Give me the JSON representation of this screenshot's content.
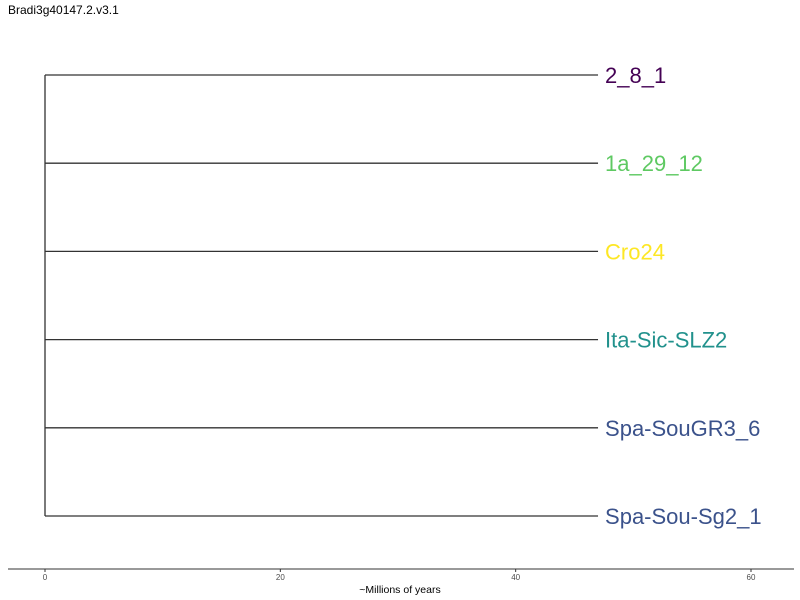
{
  "title": "Bradi3g40147.2.v3.1",
  "chart_data": {
    "type": "dendrogram",
    "x_axis": {
      "label": "~Millions of years",
      "ticks": [
        0,
        20,
        40,
        60
      ],
      "range": [
        0,
        60
      ]
    },
    "branch_length": 47,
    "leaves": [
      {
        "label": "2_8_1",
        "color": "#440154"
      },
      {
        "label": "1a_29_12",
        "color": "#5EC962"
      },
      {
        "label": "Cro24",
        "color": "#FDE725"
      },
      {
        "label": "Ita-Sic-SLZ2",
        "color": "#21918C"
      },
      {
        "label": "Spa-SouGR3_6",
        "color": "#3B528B"
      },
      {
        "label": "Spa-Sou-Sg2_1",
        "color": "#3B528B"
      }
    ]
  }
}
